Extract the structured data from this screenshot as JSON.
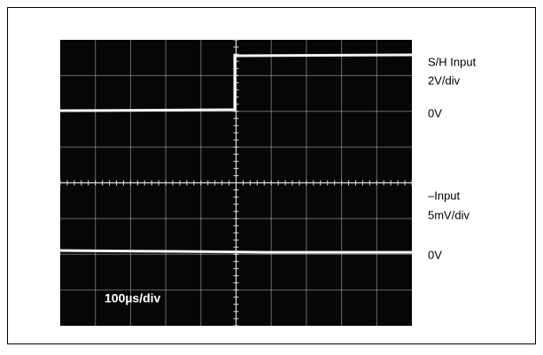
{
  "traces": [
    {
      "name": "S/H Input",
      "scale": "2V/div",
      "zero": "0V"
    },
    {
      "name": "–Input",
      "scale": "5mV/div",
      "zero": "0V"
    }
  ],
  "timebase": "100µs/div"
}
